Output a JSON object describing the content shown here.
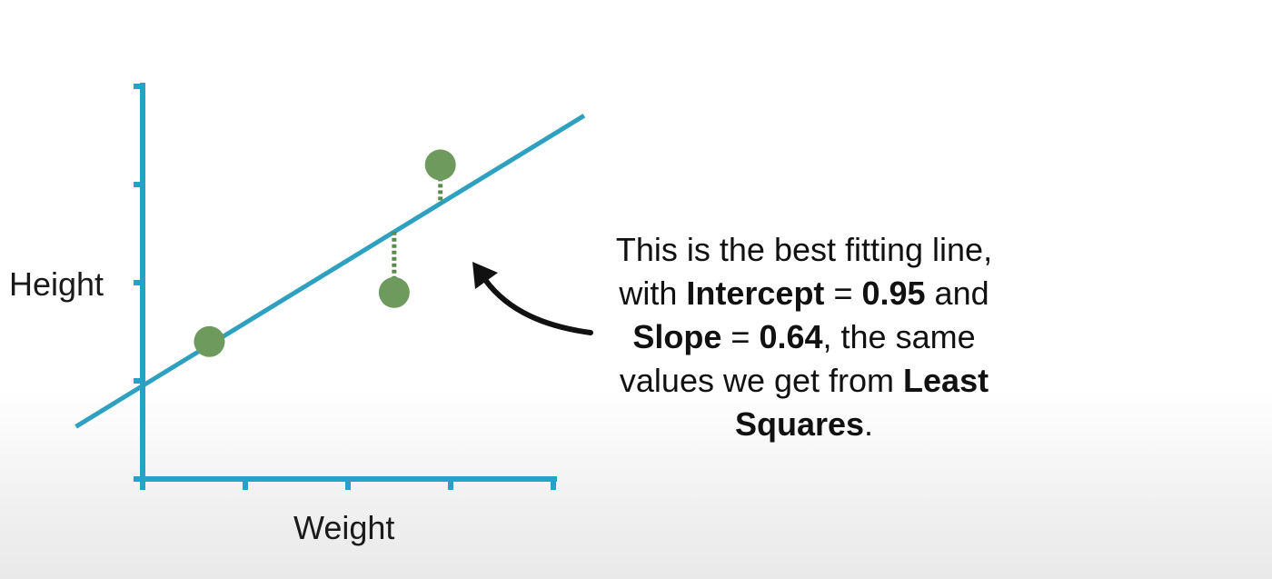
{
  "chart_data": {
    "type": "scatter",
    "xlabel": "Weight",
    "ylabel": "Height",
    "x_ticks": 4,
    "y_ticks": 4,
    "xlim": [
      0,
      4
    ],
    "ylim": [
      0,
      4
    ],
    "points": [
      {
        "x": 0.65,
        "y": 1.4
      },
      {
        "x": 2.45,
        "y": 1.9
      },
      {
        "x": 2.9,
        "y": 3.2
      }
    ],
    "fit_line": {
      "intercept": 0.95,
      "slope": 0.64
    },
    "show_residuals": true,
    "grid": false
  },
  "callout": {
    "line1": "This is the best fitting line,",
    "line2_pre": "with ",
    "line2_b1": "Intercept",
    "line2_mid": " = ",
    "line2_b2": "0.95",
    "line2_post": " and",
    "line3_b1": "Slope",
    "line3_mid": " = ",
    "line3_b2": "0.64",
    "line3_post": ", the same",
    "line4_pre": "values we get from ",
    "line4_b": "Least",
    "line5_b": "Squares",
    "line5_post": "."
  },
  "colors": {
    "axis": "#25a2c8",
    "fit_line": "#2ea0c0",
    "points": "#6e9a5e",
    "residual": "#5a8a4e",
    "arrow": "#111111"
  }
}
